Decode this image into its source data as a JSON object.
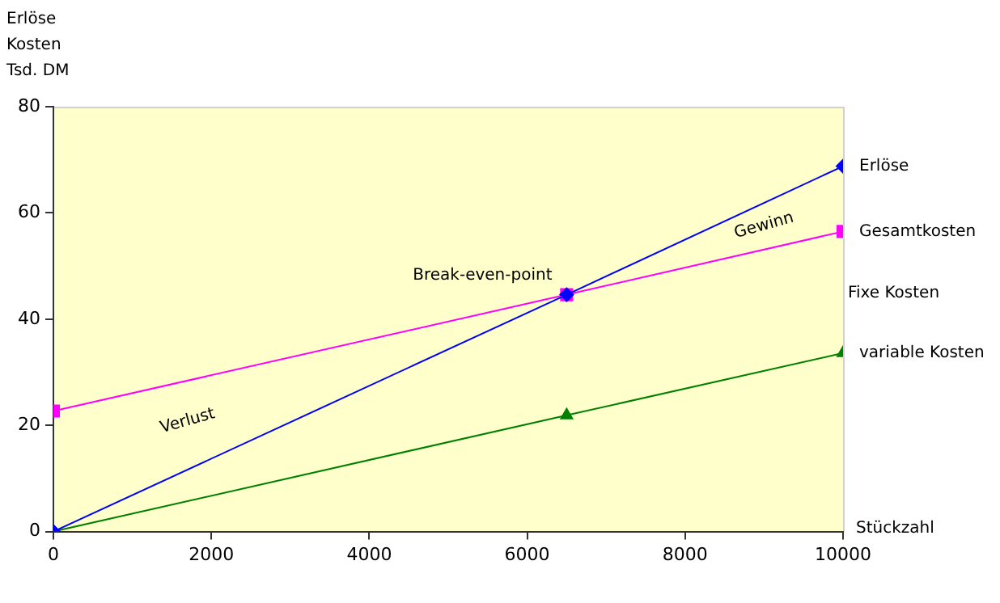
{
  "chart_data": {
    "type": "line",
    "ylabel": "Erlöse\nKosten\nTsd. DM",
    "xlabel": "Stückzahl",
    "xlim": [
      0,
      10000
    ],
    "xticks": [
      0,
      2000,
      4000,
      6000,
      8000,
      10000
    ],
    "ylim": [
      0,
      80
    ],
    "yticks": [
      0,
      20,
      40,
      60,
      80
    ],
    "grid": false,
    "legend": false,
    "line_style": "solid",
    "series": [
      {
        "name": "Erlöse",
        "color": "#0000ff",
        "marker": "diamond",
        "x": [
          0,
          6500,
          10000
        ],
        "values": [
          0,
          44.6,
          68.8
        ]
      },
      {
        "name": "Gesamtkosten",
        "color": "#ff00ff",
        "marker": "square",
        "x": [
          0,
          6500,
          10000
        ],
        "values": [
          22.7,
          44.6,
          56.5
        ]
      },
      {
        "name": "variable Kosten",
        "color": "#008000",
        "marker": "triangle",
        "x": [
          0,
          6500,
          10000
        ],
        "values": [
          0,
          21.9,
          33.6
        ]
      }
    ],
    "annotations": [
      {
        "text": "Break-even-point",
        "x": 6500,
        "y": 44.6
      },
      "Gewinn",
      "Verlust",
      "Fixe Kosten"
    ]
  }
}
